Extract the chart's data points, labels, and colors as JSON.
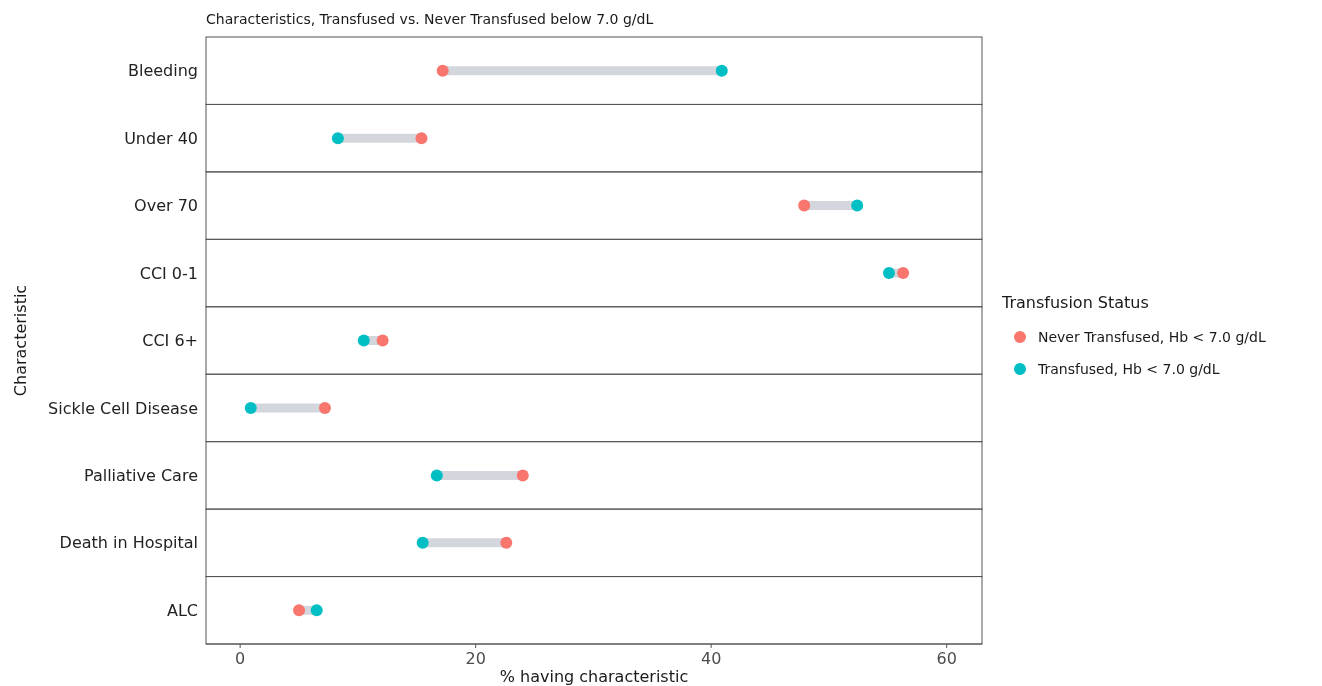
{
  "chart_data": {
    "type": "scatter",
    "title": "Characteristics, Transfused vs. Never Transfused below 7.0 g/dL",
    "xlabel": "% having characteristic",
    "ylabel": "Characteristic",
    "legend_title": "Transfusion Status",
    "orientation": "horizontal",
    "categories": [
      "Bleeding",
      "Under 40",
      "Over 70",
      "CCI 0-1",
      "CCI 6+",
      "Sickle Cell Disease",
      "Palliative Care",
      "Death in Hospital",
      "ALC"
    ],
    "series": [
      {
        "name": "Never Transfused, Hb < 7.0 g/dL",
        "color": "#f8766d",
        "values": [
          17.2,
          15.4,
          47.9,
          56.3,
          12.1,
          7.2,
          24.0,
          22.6,
          5.0
        ]
      },
      {
        "name": "Transfused, Hb < 7.0 g/dL",
        "color": "#00bfc4",
        "values": [
          40.9,
          8.3,
          52.4,
          55.1,
          10.5,
          0.9,
          16.7,
          15.5,
          6.5
        ]
      }
    ],
    "xlim": [
      -2.9,
      63
    ],
    "xticks": [
      0,
      20,
      40,
      60
    ],
    "grid": false,
    "legend": "right",
    "marker": "circle"
  }
}
